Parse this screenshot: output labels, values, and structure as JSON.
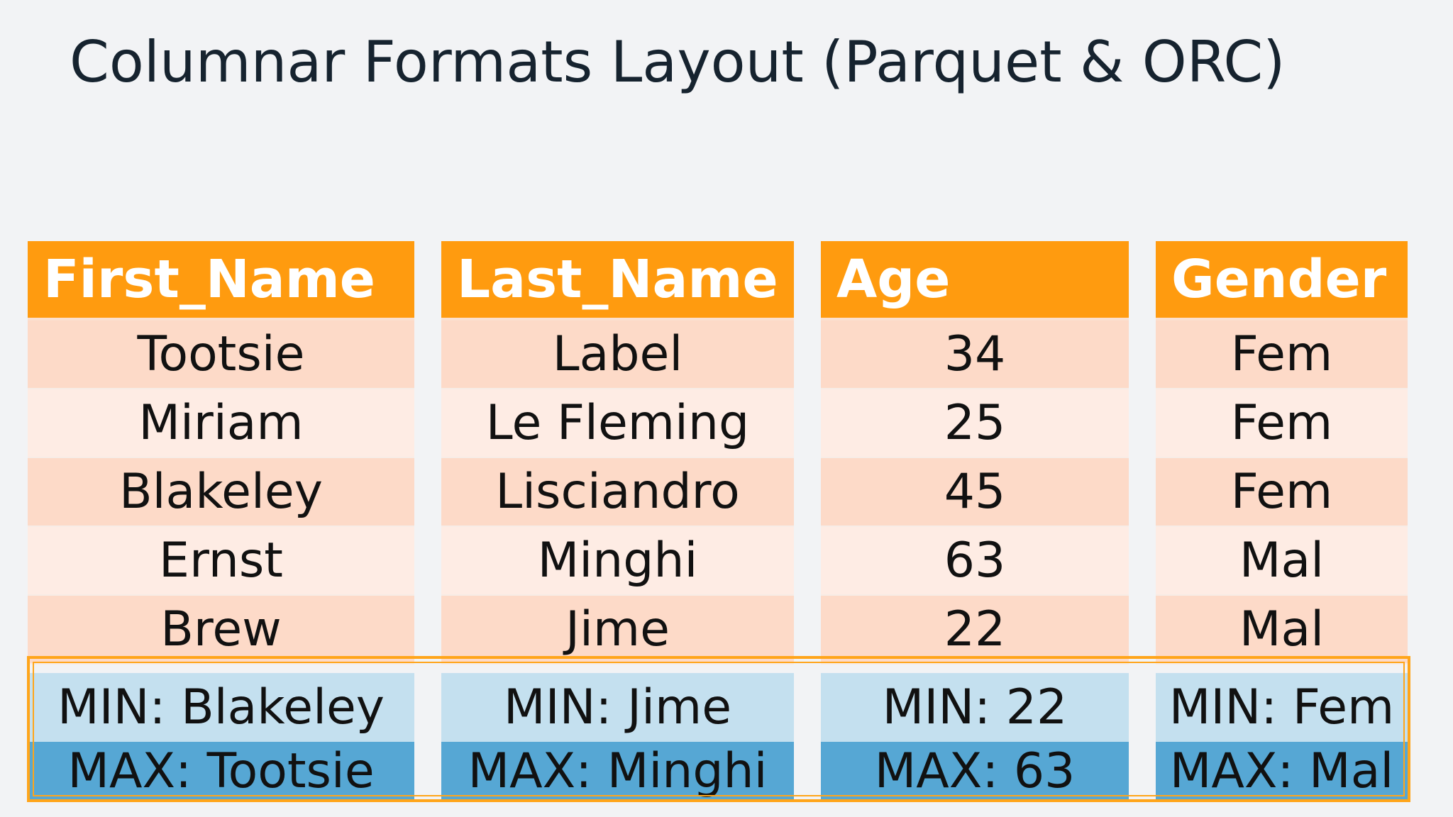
{
  "slide": {
    "title": "Columnar Formats Layout (Parquet & ORC)"
  },
  "columns": [
    {
      "header": "First_Name",
      "values": [
        "Tootsie",
        "Miriam",
        "Blakeley",
        "Ernst",
        "Brew"
      ],
      "min": "MIN: Blakeley",
      "max": "MAX: Tootsie"
    },
    {
      "header": "Last_Name",
      "values": [
        "Label",
        "Le Fleming",
        "Lisciandro",
        "Minghi",
        "Jime"
      ],
      "min": "MIN: Jime",
      "max": "MAX: Minghi"
    },
    {
      "header": "Age",
      "values": [
        "34",
        "25",
        "45",
        "63",
        "22"
      ],
      "min": "MIN: 22",
      "max": "MAX: 63"
    },
    {
      "header": "Gender",
      "values": [
        "Fem",
        "Fem",
        "Fem",
        "Mal",
        "Mal"
      ],
      "min": "MIN: Fem",
      "max": "MAX: Mal"
    }
  ],
  "colors": {
    "header": "#ff9b0f",
    "row_dark": "#fddac8",
    "row_light": "#feece4",
    "min_row": "#c4e0ef",
    "max_row": "#56a7d4",
    "highlight_outline": "#ffa51a",
    "background": "#f2f3f5"
  }
}
